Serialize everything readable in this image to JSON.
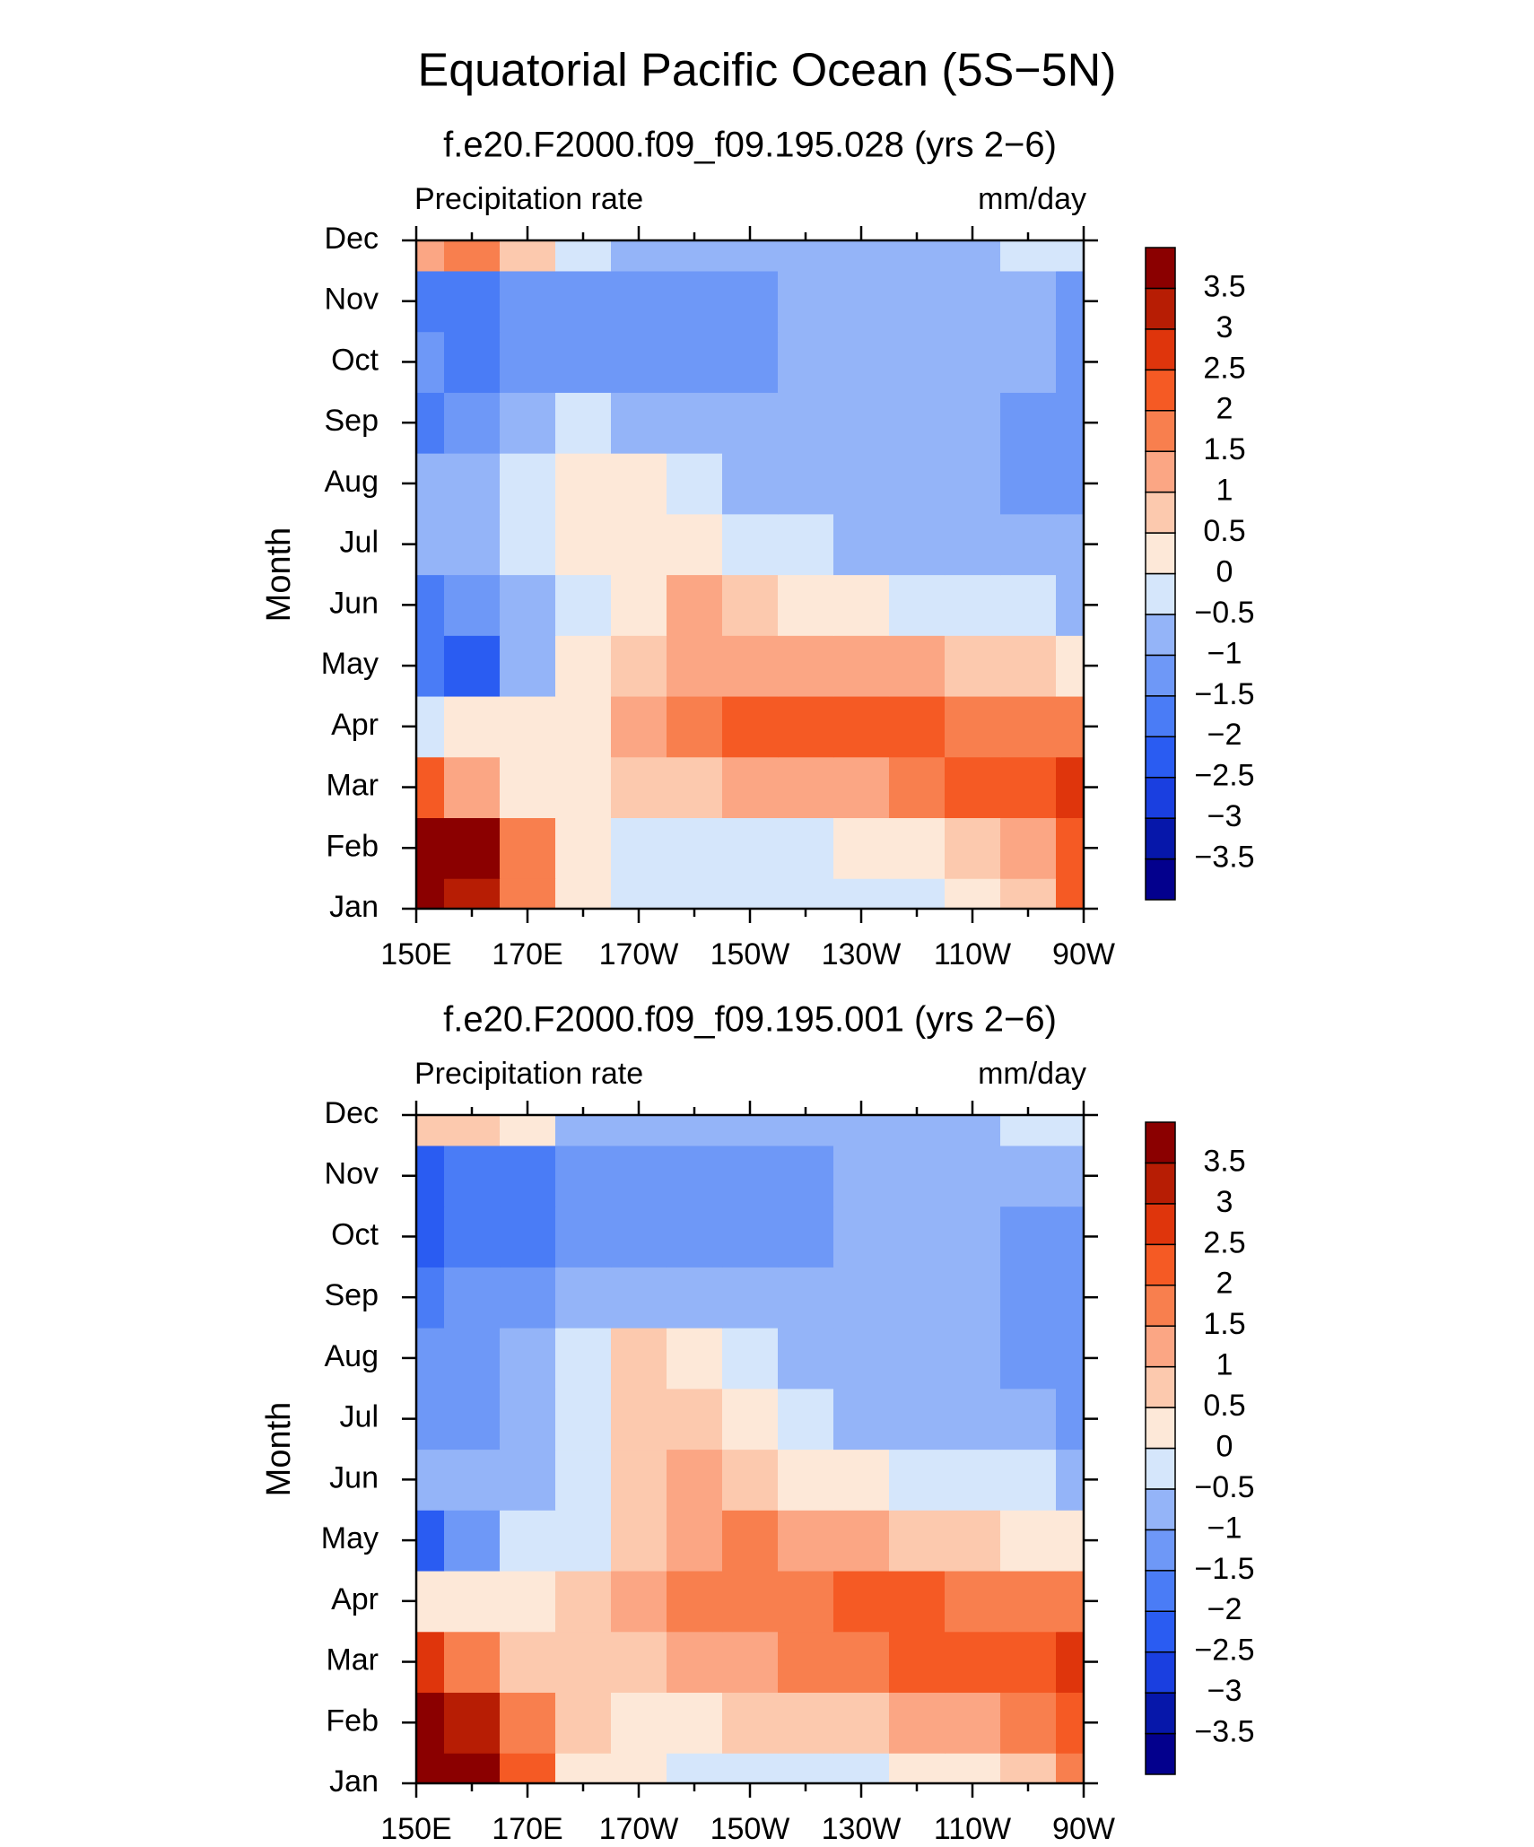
{
  "header": {
    "title": "Equatorial Pacific Ocean (5S−5N)"
  },
  "chart_data": [
    {
      "type": "heatmap",
      "title": "f.e20.F2000.f09_f09.195.028 (yrs 2−6)",
      "left_label": "Precipitation rate",
      "right_label": "mm/day",
      "ylabel": "Month",
      "categories": [
        "Jan",
        "Feb",
        "Mar",
        "Apr",
        "May",
        "Jun",
        "Jul",
        "Aug",
        "Sep",
        "Oct",
        "Nov",
        "Dec"
      ],
      "x": [
        150,
        160,
        170,
        180,
        190,
        200,
        210,
        220,
        230,
        240,
        250,
        260,
        270
      ],
      "xlim": [
        150,
        270
      ],
      "xticks": [
        {
          "value": 150,
          "label": "150E"
        },
        {
          "value": 170,
          "label": "170E"
        },
        {
          "value": 190,
          "label": "170W"
        },
        {
          "value": 210,
          "label": "150W"
        },
        {
          "value": 230,
          "label": "130W"
        },
        {
          "value": 250,
          "label": "110W"
        },
        {
          "value": 270,
          "label": "90W"
        }
      ],
      "z": [
        [
          4,
          3,
          1.5,
          0.3,
          -0.2,
          -0.3,
          -0.3,
          -0.3,
          -0.3,
          -0.2,
          0.3,
          0.8,
          2
        ],
        [
          4,
          3.5,
          1.5,
          0.3,
          -0.3,
          -0.5,
          -0.3,
          -0.3,
          0,
          0.3,
          0.7,
          1,
          2
        ],
        [
          2,
          1,
          0.3,
          0.2,
          0.5,
          0.7,
          1,
          1.2,
          1.3,
          1.5,
          2.3,
          2.3,
          2.5
        ],
        [
          -0.3,
          0,
          0.2,
          0.3,
          1,
          1.7,
          2.3,
          2.3,
          2.2,
          2,
          1.8,
          1.8,
          1.8
        ],
        [
          -2,
          -2.2,
          -1,
          0,
          0.8,
          1.3,
          1.3,
          1.2,
          1.2,
          1,
          0.8,
          0.5,
          0.3
        ],
        [
          -1.6,
          -1.3,
          -0.8,
          -0.3,
          0.3,
          1,
          0.5,
          0.2,
          0,
          -0.2,
          -0.3,
          -0.5,
          -0.7
        ],
        [
          -1,
          -0.8,
          -0.5,
          0.2,
          0.3,
          0.2,
          -0.2,
          -0.5,
          -0.6,
          -0.7,
          -0.8,
          -0.8,
          -1
        ],
        [
          -0.7,
          -0.8,
          -0.3,
          0.2,
          0,
          -0.3,
          -0.6,
          -0.7,
          -0.8,
          -0.8,
          -0.8,
          -1.2,
          -1.2
        ],
        [
          -1.7,
          -1.2,
          -0.7,
          -0.4,
          -0.6,
          -0.8,
          -0.9,
          -0.9,
          -0.8,
          -0.8,
          -0.8,
          -1.2,
          -1.2
        ],
        [
          -1.2,
          -1.6,
          -1.2,
          -1.1,
          -1.1,
          -1.2,
          -1.2,
          -0.9,
          -0.8,
          -0.8,
          -0.8,
          -1,
          -1.2
        ],
        [
          -1.8,
          -1.6,
          -1.3,
          -1.2,
          -1.1,
          -1.1,
          -1.2,
          -0.8,
          -0.8,
          -0.8,
          -0.8,
          -0.8,
          -1.1
        ],
        [
          1.3,
          1.8,
          0.7,
          -0.5,
          -0.8,
          -0.8,
          -0.8,
          -0.8,
          -0.8,
          -0.8,
          -0.8,
          -0.4,
          -0.4
        ]
      ],
      "levels": [
        {
          "value": -3.5,
          "label": "−3.5"
        },
        {
          "value": -3,
          "label": "−3"
        },
        {
          "value": -2.5,
          "label": "−2.5"
        },
        {
          "value": -2,
          "label": "−2"
        },
        {
          "value": -1.5,
          "label": "−1.5"
        },
        {
          "value": -1,
          "label": "−1"
        },
        {
          "value": -0.5,
          "label": "−0.5"
        },
        0,
        0.5,
        1,
        1.5,
        2,
        2.5,
        3,
        3.5
      ],
      "colors": [
        "#03008d",
        "#0617aa",
        "#1a3fe0",
        "#2a5cf2",
        "#4a7cf6",
        "#6e98f7",
        "#94b4f8",
        "#d5e6fb",
        "#fde8d8",
        "#fcc9ae",
        "#fba684",
        "#f87f4e",
        "#f55a24",
        "#df350c",
        "#b71d04",
        "#8b0000"
      ]
    },
    {
      "type": "heatmap",
      "title": "f.e20.F2000.f09_f09.195.001 (yrs 2−6)",
      "left_label": "Precipitation rate",
      "right_label": "mm/day",
      "ylabel": "Month",
      "categories": [
        "Jan",
        "Feb",
        "Mar",
        "Apr",
        "May",
        "Jun",
        "Jul",
        "Aug",
        "Sep",
        "Oct",
        "Nov",
        "Dec"
      ],
      "x": [
        150,
        160,
        170,
        180,
        190,
        200,
        210,
        220,
        230,
        240,
        250,
        260,
        270
      ],
      "xlim": [
        150,
        270
      ],
      "xticks": [
        {
          "value": 150,
          "label": "150E"
        },
        {
          "value": 170,
          "label": "170E"
        },
        {
          "value": 190,
          "label": "170W"
        },
        {
          "value": 210,
          "label": "150W"
        },
        {
          "value": 230,
          "label": "130W"
        },
        {
          "value": 250,
          "label": "110W"
        },
        {
          "value": 270,
          "label": "90W"
        }
      ],
      "z": [
        [
          4,
          3.5,
          2,
          0.3,
          0,
          -0.2,
          -0.3,
          -0.3,
          -0.2,
          0,
          0.3,
          0.8,
          1.8
        ],
        [
          4,
          3,
          1.5,
          0.5,
          0.2,
          0.3,
          0.5,
          0.7,
          0.8,
          1,
          1.3,
          1.6,
          2
        ],
        [
          2.5,
          1.5,
          0.8,
          0.6,
          0.8,
          1,
          1.4,
          1.6,
          1.8,
          2,
          2.2,
          2.3,
          2.5
        ],
        [
          0,
          0.2,
          0.3,
          0.7,
          1,
          1.5,
          1.8,
          1.9,
          2,
          2,
          1.8,
          1.5,
          1.5
        ],
        [
          -2.5,
          -1.5,
          -0.5,
          -0.3,
          0.6,
          1.2,
          1.5,
          1.3,
          1,
          0.8,
          0.6,
          0.3,
          0.2
        ],
        [
          -1,
          -1,
          -0.7,
          -0.3,
          0.6,
          1,
          0.6,
          0.3,
          0,
          -0.2,
          -0.3,
          -0.4,
          -0.6
        ],
        [
          -1.2,
          -1.2,
          -0.8,
          -0.2,
          0.7,
          0.6,
          0.1,
          -0.4,
          -0.6,
          -0.7,
          -0.8,
          -0.9,
          -1.2
        ],
        [
          -1.5,
          -1.2,
          -0.8,
          -0.2,
          0.5,
          0,
          -0.4,
          -0.6,
          -0.7,
          -0.8,
          -0.8,
          -1.2,
          -1.2
        ],
        [
          -1.6,
          -1.4,
          -1.2,
          -1,
          -0.8,
          -0.9,
          -0.9,
          -0.8,
          -0.8,
          -0.8,
          -0.8,
          -1.2,
          -1.2
        ],
        [
          -2.1,
          -1.8,
          -1.6,
          -1.3,
          -1.2,
          -1.2,
          -1.2,
          -1.1,
          -0.8,
          -0.8,
          -0.8,
          -1.1,
          -1.2
        ],
        [
          -2.2,
          -2,
          -1.8,
          -1.4,
          -1.2,
          -1.2,
          -1.1,
          -1.1,
          -0.8,
          -0.8,
          -0.8,
          -0.8,
          -1
        ],
        [
          0.7,
          0.5,
          0.3,
          -0.6,
          -0.9,
          -0.8,
          -0.8,
          -0.8,
          -0.8,
          -0.8,
          -0.6,
          -0.4,
          -0.4
        ]
      ],
      "levels": [
        {
          "value": -3.5,
          "label": "−3.5"
        },
        {
          "value": -3,
          "label": "−3"
        },
        {
          "value": -2.5,
          "label": "−2.5"
        },
        {
          "value": -2,
          "label": "−2"
        },
        {
          "value": -1.5,
          "label": "−1.5"
        },
        {
          "value": -1,
          "label": "−1"
        },
        {
          "value": -0.5,
          "label": "−0.5"
        },
        0,
        0.5,
        1,
        1.5,
        2,
        2.5,
        3,
        3.5
      ],
      "colors": [
        "#03008d",
        "#0617aa",
        "#1a3fe0",
        "#2a5cf2",
        "#4a7cf6",
        "#6e98f7",
        "#94b4f8",
        "#d5e6fb",
        "#fde8d8",
        "#fcc9ae",
        "#fba684",
        "#f87f4e",
        "#f55a24",
        "#df350c",
        "#b71d04",
        "#8b0000"
      ]
    }
  ]
}
